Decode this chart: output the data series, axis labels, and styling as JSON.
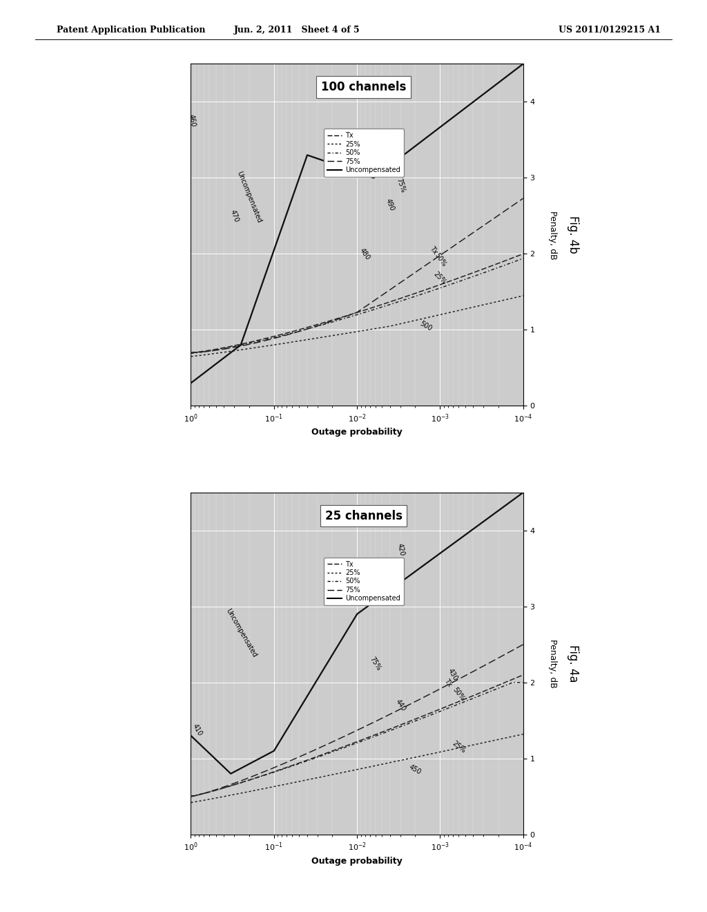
{
  "header_left": "Patent Application Publication",
  "header_center": "Jun. 2, 2011   Sheet 4 of 5",
  "header_right": "US 2011/0129215 A1",
  "background_color": "#ffffff",
  "plot_bg_color": "#cccccc",
  "fig_top": {
    "title": "100 channels",
    "fig_label": "Fig. 4b",
    "ref_numbers": [
      "460",
      "470",
      "480",
      "490",
      "500"
    ]
  },
  "fig_bottom": {
    "title": "25 channels",
    "fig_label": "Fig. 4a",
    "ref_numbers": [
      "410",
      "420",
      "430",
      "440",
      "450"
    ]
  },
  "xlabel": "Outage probability",
  "ylabel": "Penalty, dB"
}
